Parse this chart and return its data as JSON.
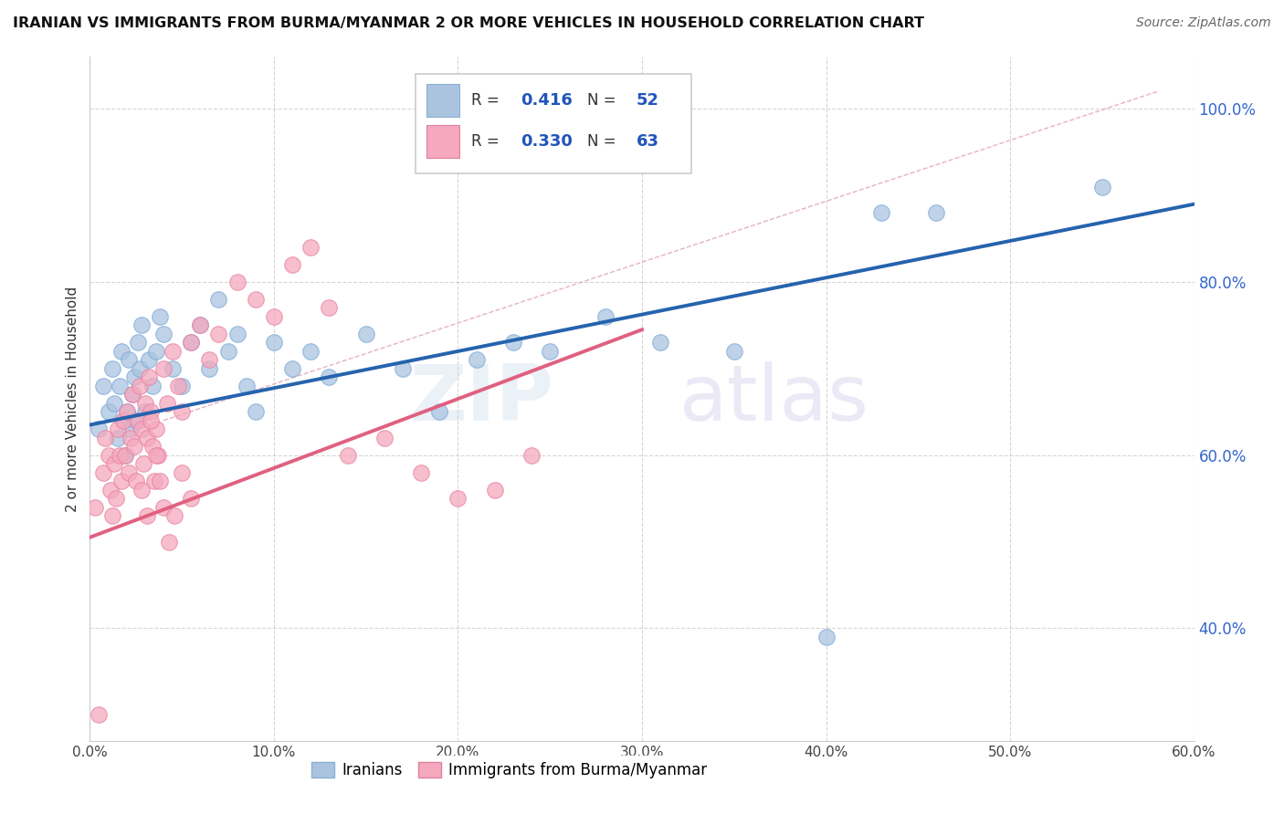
{
  "title": "IRANIAN VS IMMIGRANTS FROM BURMA/MYANMAR 2 OR MORE VEHICLES IN HOUSEHOLD CORRELATION CHART",
  "source": "Source: ZipAtlas.com",
  "ylabel": "2 or more Vehicles in Household",
  "xlim": [
    0.0,
    0.6
  ],
  "ylim": [
    0.27,
    1.06
  ],
  "xtick_values": [
    0.0,
    0.1,
    0.2,
    0.3,
    0.4,
    0.5,
    0.6
  ],
  "xtick_labels": [
    "0.0%",
    "10.0%",
    "20.0%",
    "30.0%",
    "40.0%",
    "50.0%",
    "60.0%"
  ],
  "ytick_values": [
    0.4,
    0.6,
    0.8,
    1.0
  ],
  "ytick_labels": [
    "40.0%",
    "60.0%",
    "80.0%",
    "100.0%"
  ],
  "blue_R": "0.416",
  "blue_N": "52",
  "pink_R": "0.330",
  "pink_N": "63",
  "blue_color": "#aac4e0",
  "pink_color": "#f5a8be",
  "blue_line_color": "#2563ae",
  "pink_line_color": "#e06080",
  "diag_color": "#e0a0b0",
  "grid_color": "#cccccc",
  "legend_label_blue": "Iranians",
  "legend_label_pink": "Immigrants from Burma/Myanmar",
  "blue_x": [
    0.005,
    0.007,
    0.01,
    0.012,
    0.013,
    0.015,
    0.016,
    0.017,
    0.018,
    0.019,
    0.02,
    0.021,
    0.022,
    0.023,
    0.024,
    0.025,
    0.026,
    0.027,
    0.028,
    0.03,
    0.032,
    0.034,
    0.036,
    0.038,
    0.04,
    0.045,
    0.05,
    0.055,
    0.06,
    0.065,
    0.07,
    0.075,
    0.08,
    0.085,
    0.09,
    0.1,
    0.11,
    0.12,
    0.13,
    0.15,
    0.17,
    0.19,
    0.21,
    0.23,
    0.25,
    0.28,
    0.31,
    0.35,
    0.4,
    0.43,
    0.46,
    0.55
  ],
  "blue_y": [
    0.63,
    0.68,
    0.65,
    0.7,
    0.66,
    0.62,
    0.68,
    0.72,
    0.64,
    0.6,
    0.65,
    0.71,
    0.63,
    0.67,
    0.69,
    0.64,
    0.73,
    0.7,
    0.75,
    0.65,
    0.71,
    0.68,
    0.72,
    0.76,
    0.74,
    0.7,
    0.68,
    0.73,
    0.75,
    0.7,
    0.78,
    0.72,
    0.74,
    0.68,
    0.65,
    0.73,
    0.7,
    0.72,
    0.69,
    0.74,
    0.7,
    0.65,
    0.71,
    0.73,
    0.72,
    0.76,
    0.73,
    0.72,
    0.39,
    0.88,
    0.88,
    0.91
  ],
  "pink_x": [
    0.003,
    0.005,
    0.007,
    0.008,
    0.01,
    0.011,
    0.012,
    0.013,
    0.014,
    0.015,
    0.016,
    0.017,
    0.018,
    0.019,
    0.02,
    0.021,
    0.022,
    0.023,
    0.024,
    0.025,
    0.026,
    0.027,
    0.028,
    0.029,
    0.03,
    0.031,
    0.032,
    0.033,
    0.034,
    0.035,
    0.036,
    0.037,
    0.04,
    0.042,
    0.045,
    0.048,
    0.05,
    0.055,
    0.06,
    0.065,
    0.07,
    0.08,
    0.09,
    0.1,
    0.11,
    0.12,
    0.13,
    0.14,
    0.16,
    0.18,
    0.2,
    0.22,
    0.24,
    0.028,
    0.031,
    0.033,
    0.036,
    0.038,
    0.04,
    0.043,
    0.046,
    0.05,
    0.055
  ],
  "pink_y": [
    0.54,
    0.3,
    0.58,
    0.62,
    0.6,
    0.56,
    0.53,
    0.59,
    0.55,
    0.63,
    0.6,
    0.57,
    0.64,
    0.6,
    0.65,
    0.58,
    0.62,
    0.67,
    0.61,
    0.57,
    0.64,
    0.68,
    0.63,
    0.59,
    0.66,
    0.62,
    0.69,
    0.65,
    0.61,
    0.57,
    0.63,
    0.6,
    0.7,
    0.66,
    0.72,
    0.68,
    0.65,
    0.73,
    0.75,
    0.71,
    0.74,
    0.8,
    0.78,
    0.76,
    0.82,
    0.84,
    0.77,
    0.6,
    0.62,
    0.58,
    0.55,
    0.56,
    0.6,
    0.56,
    0.53,
    0.64,
    0.6,
    0.57,
    0.54,
    0.5,
    0.53,
    0.58,
    0.55
  ]
}
